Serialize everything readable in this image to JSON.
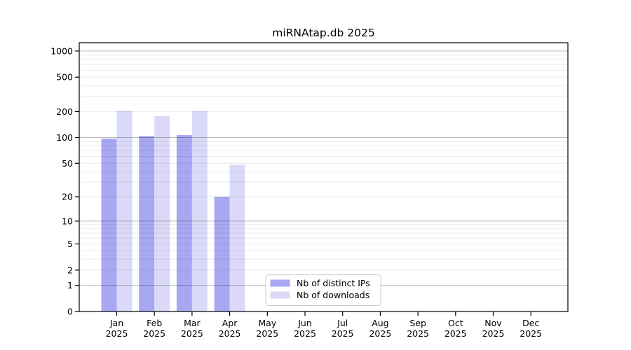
{
  "chart_data": {
    "type": "bar",
    "title": "miRNAtap.db 2025",
    "categories": [
      "Jan",
      "Feb",
      "Mar",
      "Apr",
      "May",
      "Jun",
      "Jul",
      "Aug",
      "Sep",
      "Oct",
      "Nov",
      "Dec"
    ],
    "x_tick_second_line": "2025",
    "series": [
      {
        "name": "Nb of distinct IPs",
        "color": "#a8a8f2",
        "values": [
          97,
          104,
          107,
          20,
          null,
          null,
          null,
          null,
          null,
          null,
          null,
          null
        ]
      },
      {
        "name": "Nb of downloads",
        "color": "#dadaf8",
        "values": [
          205,
          178,
          203,
          48,
          null,
          null,
          null,
          null,
          null,
          null,
          null,
          null
        ]
      }
    ],
    "y_axis": {
      "scale": "log1p",
      "ticks": [
        0,
        1,
        2,
        5,
        10,
        20,
        50,
        100,
        200,
        500,
        1000
      ],
      "range_top": 1250
    },
    "grid": "horizontal, minor lines each decade step, darker lines at 1/10/100/1000",
    "legend": {
      "position": "inside-bottom-center",
      "entries": [
        "Nb of distinct IPs",
        "Nb of downloads"
      ]
    }
  }
}
